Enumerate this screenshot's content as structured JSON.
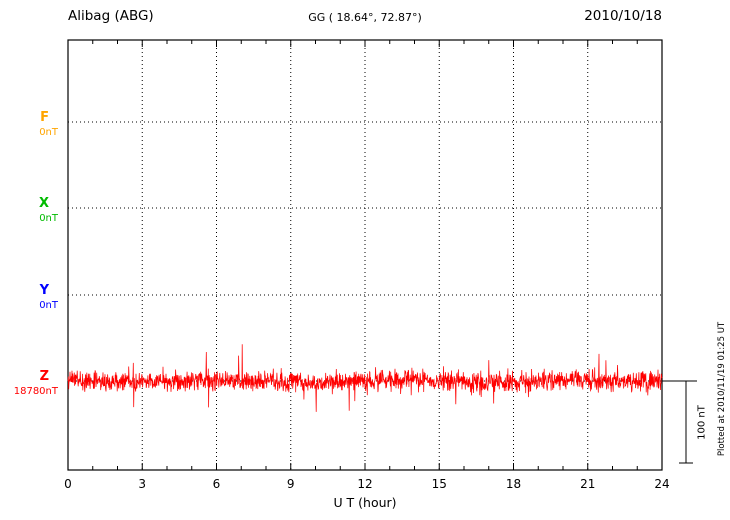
{
  "header": {
    "station": "Alibag (ABG)",
    "coords": "GG ( 18.64°,  72.87°)",
    "date": "2010/10/18"
  },
  "axes": {
    "xlabel": "U T (hour)",
    "x_ticks": [
      0,
      3,
      6,
      9,
      12,
      15,
      18,
      21,
      24
    ]
  },
  "components": [
    {
      "label": "F",
      "value": "0nT",
      "color": "#ffa500"
    },
    {
      "label": "X",
      "value": "0nT",
      "color": "#00bb00"
    },
    {
      "label": "Y",
      "value": "0nT",
      "color": "#0000ff"
    },
    {
      "label": "Z",
      "value": "18780nT",
      "color": "#ff0000"
    }
  ],
  "scale_bar": {
    "label": "100 nT"
  },
  "footer_note": "Plotted at 2010/11/19 01:25 UT",
  "chart_data": {
    "type": "line",
    "title": "Alibag (ABG) magnetogram",
    "date": "2010/10/18",
    "geographic_coords": {
      "lat_deg": 18.64,
      "lon_deg": 72.87
    },
    "xlabel": "U T (hour)",
    "x_range": [
      0,
      24
    ],
    "x_tick_interval_hours": 3,
    "grid": "dotted",
    "amplitude_scale_label": "100 nT",
    "series": [
      {
        "name": "F",
        "baseline_label": "0nT",
        "color": "#ffa500",
        "trace_visible": false
      },
      {
        "name": "X",
        "baseline_label": "0nT",
        "color": "#00bb00",
        "trace_visible": false
      },
      {
        "name": "Y",
        "baseline_label": "0nT",
        "color": "#0000ff",
        "trace_visible": false
      },
      {
        "name": "Z",
        "baseline_label": "18780nT",
        "color": "#ff0000",
        "trace_visible": true,
        "description": "dense noisy trace centered on 18780 nT, typical fluctuation ±15 nT with spikes to ±35 nT"
      }
    ]
  },
  "render": {
    "seed": 987654321,
    "points": 1800,
    "trace_color": "#ff0000"
  }
}
